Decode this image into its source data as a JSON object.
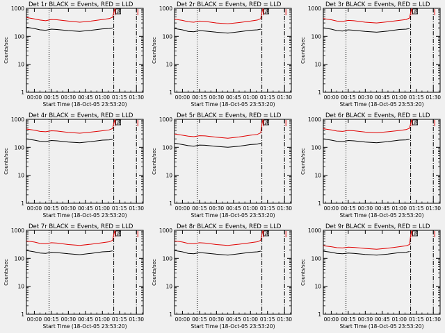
{
  "colors": {
    "background": "#f0f0f0",
    "events": "#000000",
    "lld": "#e00000",
    "axis": "#000000"
  },
  "chart_data": [
    {
      "type": "line",
      "title": "Det 1r BLACK = Events, RED = LLD",
      "xlabel": "Start Time (18-Oct-05 23:53:20)",
      "ylabel": "Counts/sec",
      "yscale": "log",
      "ylim": [
        1,
        1000
      ],
      "xlim_minutes": [
        -7,
        96
      ],
      "x_tick_labels": [
        "00:00",
        "00:15",
        "00:30",
        "00:45",
        "01:00",
        "01:15",
        "01:30"
      ],
      "y_tick_labels": [
        "1",
        "10",
        "100",
        "1000"
      ],
      "vlines_minutes": {
        "dotted": [
          13
        ],
        "dashdot": [
          70,
          90
        ]
      },
      "marker": {
        "label": "A",
        "minutes": 74
      },
      "series": [
        {
          "name": "Events",
          "color": "black",
          "x_minutes": [
            -7,
            0,
            5,
            10,
            15,
            20,
            30,
            40,
            50,
            60,
            66,
            69
          ],
          "y": [
            210,
            190,
            170,
            165,
            180,
            175,
            160,
            150,
            165,
            185,
            190,
            200
          ]
        },
        {
          "name": "LLD",
          "color": "red",
          "x_minutes": [
            -7,
            0,
            5,
            10,
            15,
            20,
            30,
            40,
            50,
            60,
            66,
            69,
            70,
            71
          ],
          "y": [
            470,
            420,
            380,
            360,
            400,
            390,
            350,
            320,
            350,
            400,
            430,
            480,
            700,
            1000
          ]
        }
      ]
    },
    {
      "type": "line",
      "title": "Det 2r BLACK = Events, RED = LLD",
      "xlabel": "Start Time (18-Oct-05 23:53:20)",
      "ylabel": "Counts/sec",
      "yscale": "log",
      "ylim": [
        1,
        1000
      ],
      "xlim_minutes": [
        -7,
        96
      ],
      "x_tick_labels": [
        "00:00",
        "00:15",
        "00:30",
        "00:45",
        "01:00",
        "01:15",
        "01:30"
      ],
      "y_tick_labels": [
        "1",
        "10",
        "100",
        "1000"
      ],
      "vlines_minutes": {
        "dotted": [
          13
        ],
        "dashdot": [
          70,
          90
        ]
      },
      "marker": {
        "label": "A",
        "minutes": 74
      },
      "series": [
        {
          "name": "Events",
          "color": "black",
          "x_minutes": [
            -7,
            0,
            5,
            10,
            15,
            20,
            30,
            40,
            50,
            60,
            66,
            69
          ],
          "y": [
            190,
            170,
            150,
            145,
            160,
            155,
            140,
            130,
            145,
            165,
            170,
            180
          ]
        },
        {
          "name": "LLD",
          "color": "red",
          "x_minutes": [
            -7,
            0,
            5,
            10,
            15,
            20,
            30,
            40,
            50,
            60,
            66,
            69,
            70,
            71
          ],
          "y": [
            410,
            370,
            330,
            320,
            350,
            340,
            300,
            280,
            310,
            350,
            380,
            430,
            700,
            1000
          ]
        }
      ]
    },
    {
      "type": "line",
      "title": "Det 3r BLACK = Events, RED = LLD",
      "xlabel": "Start Time (18-Oct-05 23:53:20)",
      "ylabel": "Counts/sec",
      "yscale": "log",
      "ylim": [
        1,
        1000
      ],
      "xlim_minutes": [
        -7,
        96
      ],
      "x_tick_labels": [
        "00:00",
        "00:15",
        "00:30",
        "00:45",
        "01:00",
        "01:15",
        "01:30"
      ],
      "y_tick_labels": [
        "1",
        "10",
        "100",
        "1000"
      ],
      "vlines_minutes": {
        "dotted": [
          13
        ],
        "dashdot": [
          70,
          90
        ]
      },
      "marker": {
        "label": "A",
        "minutes": 74
      },
      "series": [
        {
          "name": "Events",
          "color": "black",
          "x_minutes": [
            -7,
            0,
            5,
            10,
            15,
            20,
            30,
            40,
            50,
            60,
            66,
            69
          ],
          "y": [
            200,
            180,
            160,
            155,
            170,
            165,
            150,
            140,
            155,
            175,
            180,
            190
          ]
        },
        {
          "name": "LLD",
          "color": "red",
          "x_minutes": [
            -7,
            0,
            5,
            10,
            15,
            20,
            30,
            40,
            50,
            60,
            66,
            69,
            70,
            71
          ],
          "y": [
            430,
            390,
            350,
            340,
            370,
            360,
            320,
            300,
            330,
            370,
            400,
            450,
            700,
            1000
          ]
        }
      ]
    },
    {
      "type": "line",
      "title": "Det 4r BLACK = Events, RED = LLD",
      "xlabel": "Start Time (18-Oct-05 23:53:20)",
      "ylabel": "Counts/sec",
      "yscale": "log",
      "ylim": [
        1,
        1000
      ],
      "xlim_minutes": [
        -7,
        96
      ],
      "x_tick_labels": [
        "00:00",
        "00:15",
        "00:30",
        "00:45",
        "01:00",
        "01:15",
        "01:30"
      ],
      "y_tick_labels": [
        "1",
        "10",
        "100",
        "1000"
      ],
      "vlines_minutes": {
        "dotted": [
          13
        ],
        "dashdot": [
          70,
          90
        ]
      },
      "marker": {
        "label": "A",
        "minutes": 74
      },
      "series": [
        {
          "name": "Events",
          "color": "black",
          "x_minutes": [
            -7,
            0,
            5,
            10,
            15,
            20,
            30,
            40,
            50,
            60,
            66,
            69
          ],
          "y": [
            200,
            180,
            165,
            160,
            175,
            170,
            155,
            145,
            160,
            180,
            185,
            195
          ]
        },
        {
          "name": "LLD",
          "color": "red",
          "x_minutes": [
            -7,
            0,
            5,
            10,
            15,
            20,
            30,
            40,
            50,
            60,
            66,
            69,
            70,
            71
          ],
          "y": [
            450,
            410,
            370,
            360,
            390,
            380,
            340,
            320,
            350,
            390,
            420,
            470,
            700,
            1000
          ]
        }
      ]
    },
    {
      "type": "line",
      "title": "Det 5r BLACK = Events, RED = LLD",
      "xlabel": "Start Time (18-Oct-05 23:53:20)",
      "ylabel": "Counts/sec",
      "yscale": "log",
      "ylim": [
        1,
        1000
      ],
      "xlim_minutes": [
        -7,
        96
      ],
      "x_tick_labels": [
        "00:00",
        "00:15",
        "00:30",
        "00:45",
        "01:00",
        "01:15",
        "01:30"
      ],
      "y_tick_labels": [
        "1",
        "10",
        "100",
        "1000"
      ],
      "vlines_minutes": {
        "dotted": [
          13
        ],
        "dashdot": [
          70,
          90
        ]
      },
      "marker": {
        "label": "A",
        "minutes": 74
      },
      "series": [
        {
          "name": "Events",
          "color": "black",
          "x_minutes": [
            -7,
            0,
            5,
            10,
            15,
            20,
            30,
            40,
            50,
            60,
            66,
            69
          ],
          "y": [
            140,
            125,
            115,
            110,
            120,
            118,
            108,
            100,
            110,
            125,
            130,
            140
          ]
        },
        {
          "name": "LLD",
          "color": "red",
          "x_minutes": [
            -7,
            0,
            5,
            10,
            15,
            20,
            30,
            40,
            50,
            60,
            66,
            69,
            70,
            71
          ],
          "y": [
            300,
            270,
            250,
            240,
            260,
            255,
            230,
            210,
            235,
            270,
            290,
            330,
            650,
            1000
          ]
        }
      ]
    },
    {
      "type": "line",
      "title": "Det 6r BLACK = Events, RED = LLD",
      "xlabel": "Start Time (18-Oct-05 23:53:20)",
      "ylabel": "Counts/sec",
      "yscale": "log",
      "ylim": [
        1,
        1000
      ],
      "xlim_minutes": [
        -7,
        96
      ],
      "x_tick_labels": [
        "00:00",
        "00:15",
        "00:30",
        "00:45",
        "01:00",
        "01:15",
        "01:30"
      ],
      "y_tick_labels": [
        "1",
        "10",
        "100",
        "1000"
      ],
      "vlines_minutes": {
        "dotted": [
          13
        ],
        "dashdot": [
          70,
          90
        ]
      },
      "marker": {
        "label": "A",
        "minutes": 74
      },
      "series": [
        {
          "name": "Events",
          "color": "black",
          "x_minutes": [
            -7,
            0,
            5,
            10,
            15,
            20,
            30,
            40,
            50,
            60,
            66,
            69
          ],
          "y": [
            200,
            180,
            165,
            160,
            175,
            170,
            155,
            145,
            160,
            180,
            185,
            195
          ]
        },
        {
          "name": "LLD",
          "color": "red",
          "x_minutes": [
            -7,
            0,
            5,
            10,
            15,
            20,
            30,
            40,
            50,
            60,
            66,
            69,
            70,
            71
          ],
          "y": [
            460,
            420,
            380,
            370,
            400,
            390,
            350,
            330,
            360,
            400,
            430,
            480,
            700,
            1000
          ]
        }
      ]
    },
    {
      "type": "line",
      "title": "Det 7r BLACK = Events, RED = LLD",
      "xlabel": "Start Time (18-Oct-05 23:53:20)",
      "ylabel": "Counts/sec",
      "yscale": "log",
      "ylim": [
        1,
        1000
      ],
      "xlim_minutes": [
        -7,
        96
      ],
      "x_tick_labels": [
        "00:00",
        "00:15",
        "00:30",
        "00:45",
        "01:00",
        "01:15",
        "01:30"
      ],
      "y_tick_labels": [
        "1",
        "10",
        "100",
        "1000"
      ],
      "vlines_minutes": {
        "dotted": [
          13
        ],
        "dashdot": [
          70,
          90
        ]
      },
      "marker": {
        "label": "A",
        "minutes": 74
      },
      "series": [
        {
          "name": "Events",
          "color": "black",
          "x_minutes": [
            -7,
            0,
            5,
            10,
            15,
            20,
            30,
            40,
            50,
            60,
            66,
            69
          ],
          "y": [
            190,
            170,
            155,
            150,
            165,
            160,
            145,
            135,
            150,
            170,
            175,
            185
          ]
        },
        {
          "name": "LLD",
          "color": "red",
          "x_minutes": [
            -7,
            0,
            5,
            10,
            15,
            20,
            30,
            40,
            50,
            60,
            66,
            69,
            70,
            71
          ],
          "y": [
            420,
            380,
            340,
            330,
            360,
            350,
            310,
            290,
            320,
            360,
            390,
            440,
            700,
            1000
          ]
        }
      ]
    },
    {
      "type": "line",
      "title": "Det 8r BLACK = Events, RED = LLD",
      "xlabel": "Start Time (18-Oct-05 23:53:20)",
      "ylabel": "Counts/sec",
      "yscale": "log",
      "ylim": [
        1,
        1000
      ],
      "xlim_minutes": [
        -7,
        96
      ],
      "x_tick_labels": [
        "00:00",
        "00:15",
        "00:30",
        "00:45",
        "01:00",
        "01:15",
        "01:30"
      ],
      "y_tick_labels": [
        "1",
        "10",
        "100",
        "1000"
      ],
      "vlines_minutes": {
        "dotted": [
          13
        ],
        "dashdot": [
          70,
          90
        ]
      },
      "marker": {
        "label": "A",
        "minutes": 74
      },
      "series": [
        {
          "name": "Events",
          "color": "black",
          "x_minutes": [
            -7,
            0,
            5,
            10,
            15,
            20,
            30,
            40,
            50,
            60,
            66,
            69
          ],
          "y": [
            190,
            170,
            150,
            145,
            160,
            155,
            140,
            130,
            145,
            165,
            170,
            180
          ]
        },
        {
          "name": "LLD",
          "color": "red",
          "x_minutes": [
            -7,
            0,
            5,
            10,
            15,
            20,
            30,
            40,
            50,
            60,
            66,
            69,
            70,
            71
          ],
          "y": [
            420,
            380,
            340,
            330,
            360,
            350,
            310,
            290,
            320,
            360,
            390,
            440,
            700,
            1000
          ]
        }
      ]
    },
    {
      "type": "line",
      "title": "Det 9r BLACK = Events, RED = LLD",
      "xlabel": "Start Time (18-Oct-05 23:53:20)",
      "ylabel": "Counts/sec",
      "yscale": "log",
      "ylim": [
        1,
        1000
      ],
      "xlim_minutes": [
        -7,
        96
      ],
      "x_tick_labels": [
        "00:00",
        "00:15",
        "00:30",
        "00:45",
        "01:00",
        "01:15",
        "01:30"
      ],
      "y_tick_labels": [
        "1",
        "10",
        "100",
        "1000"
      ],
      "vlines_minutes": {
        "dotted": [
          13
        ],
        "dashdot": [
          70,
          90
        ]
      },
      "marker": {
        "label": "A",
        "minutes": 74
      },
      "series": [
        {
          "name": "Events",
          "color": "black",
          "x_minutes": [
            -7,
            0,
            5,
            10,
            15,
            20,
            30,
            40,
            50,
            60,
            66,
            69
          ],
          "y": [
            180,
            165,
            150,
            145,
            155,
            150,
            138,
            130,
            142,
            160,
            165,
            175
          ]
        },
        {
          "name": "LLD",
          "color": "red",
          "x_minutes": [
            -7,
            0,
            5,
            10,
            15,
            20,
            30,
            40,
            50,
            60,
            66,
            69,
            70,
            71
          ],
          "y": [
            280,
            260,
            240,
            235,
            250,
            245,
            225,
            210,
            230,
            260,
            280,
            310,
            650,
            1000
          ]
        }
      ]
    }
  ]
}
